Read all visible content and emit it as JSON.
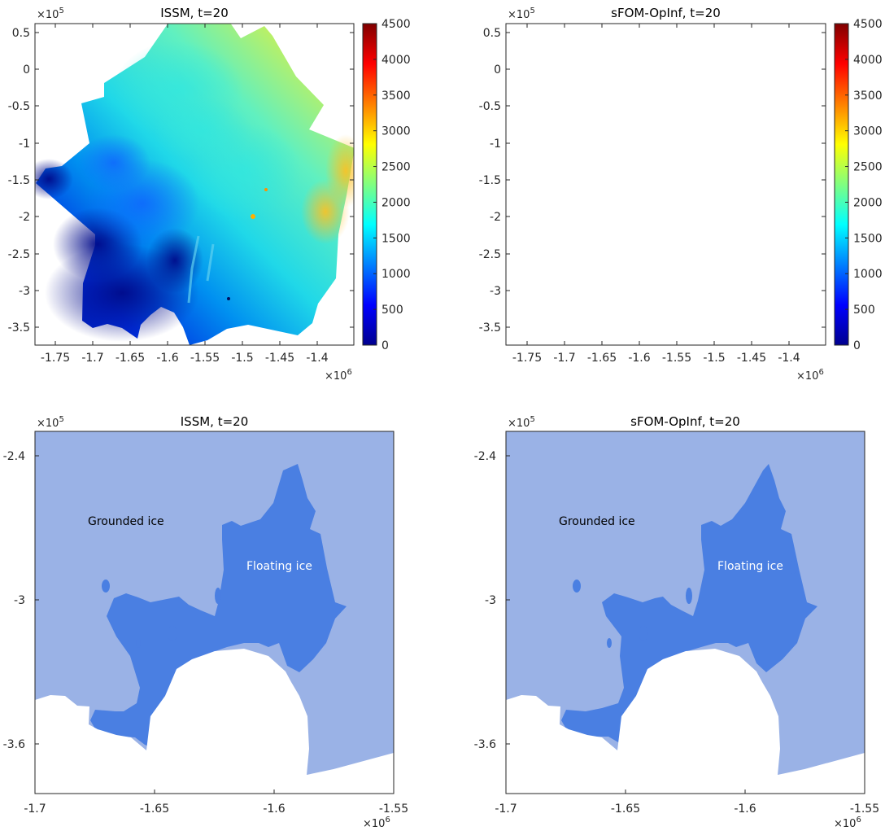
{
  "colors": {
    "grounded": "#9ab2e6",
    "floating": "#4a7fe2",
    "open": "#ffffff",
    "colormap": [
      "#00008f",
      "#0000ff",
      "#0080ff",
      "#00ffff",
      "#80ff80",
      "#ffff00",
      "#ff8000",
      "#ff0000",
      "#800000"
    ]
  },
  "chart_data": [
    {
      "type": "heatmap",
      "title": "ISSM, t=20",
      "x_multiplier": "×10",
      "x_multiplier_exp": "6",
      "y_multiplier": "×10",
      "y_multiplier_exp": "5",
      "xticks": [
        "-1.75",
        "-1.7",
        "-1.65",
        "-1.6",
        "-1.55",
        "-1.5",
        "-1.45",
        "-1.4"
      ],
      "yticks": [
        "0.5",
        "0",
        "-0.5",
        "-1",
        "-1.5",
        "-2",
        "-2.5",
        "-3",
        "-3.5"
      ],
      "xlim": [
        -1.79,
        -1.37
      ],
      "ylim": [
        -3.72,
        0.62
      ],
      "colorbar": {
        "ticks": [
          "4500",
          "4000",
          "3500",
          "3000",
          "2500",
          "2000",
          "1500",
          "1000",
          "500",
          "0"
        ],
        "range": [
          0,
          4500
        ]
      }
    },
    {
      "type": "heatmap",
      "title": "sFOM-OpInf, t=20",
      "x_multiplier": "×10",
      "x_multiplier_exp": "6",
      "y_multiplier": "×10",
      "y_multiplier_exp": "5",
      "xticks": [
        "-1.75",
        "-1.7",
        "-1.65",
        "-1.6",
        "-1.55",
        "-1.5",
        "-1.45",
        "-1.4"
      ],
      "yticks": [
        "0.5",
        "0",
        "-0.5",
        "-1",
        "-1.5",
        "-2",
        "-2.5",
        "-3",
        "-3.5"
      ],
      "xlim": [
        -1.79,
        -1.37
      ],
      "ylim": [
        -3.72,
        0.62
      ],
      "colorbar": {
        "ticks": [
          "4500",
          "4000",
          "3500",
          "3000",
          "2500",
          "2000",
          "1500",
          "1000",
          "500",
          "0"
        ],
        "range": [
          0,
          4500
        ]
      }
    },
    {
      "type": "heatmap",
      "title": "ISSM, t=20",
      "x_multiplier": "×10",
      "x_multiplier_exp": "6",
      "y_multiplier": "×10",
      "y_multiplier_exp": "5",
      "xticks": [
        "-1.7",
        "-1.65",
        "-1.6",
        "-1.55"
      ],
      "yticks": [
        "-2.4",
        "-3",
        "-3.6"
      ],
      "xlim": [
        -1.7,
        -1.55
      ],
      "ylim": [
        -3.8,
        -2.2
      ],
      "labels": {
        "grounded": "Grounded ice",
        "floating": "Floating ice"
      }
    },
    {
      "type": "heatmap",
      "title": "sFOM-OpInf, t=20",
      "x_multiplier": "×10",
      "x_multiplier_exp": "6",
      "y_multiplier": "×10",
      "y_multiplier_exp": "5",
      "xticks": [
        "-1.7",
        "-1.65",
        "-1.6",
        "-1.55"
      ],
      "yticks": [
        "-2.4",
        "-3",
        "-3.6"
      ],
      "xlim": [
        -1.7,
        -1.55
      ],
      "ylim": [
        -3.8,
        -2.2
      ],
      "labels": {
        "grounded": "Grounded ice",
        "floating": "Floating ice"
      }
    }
  ]
}
